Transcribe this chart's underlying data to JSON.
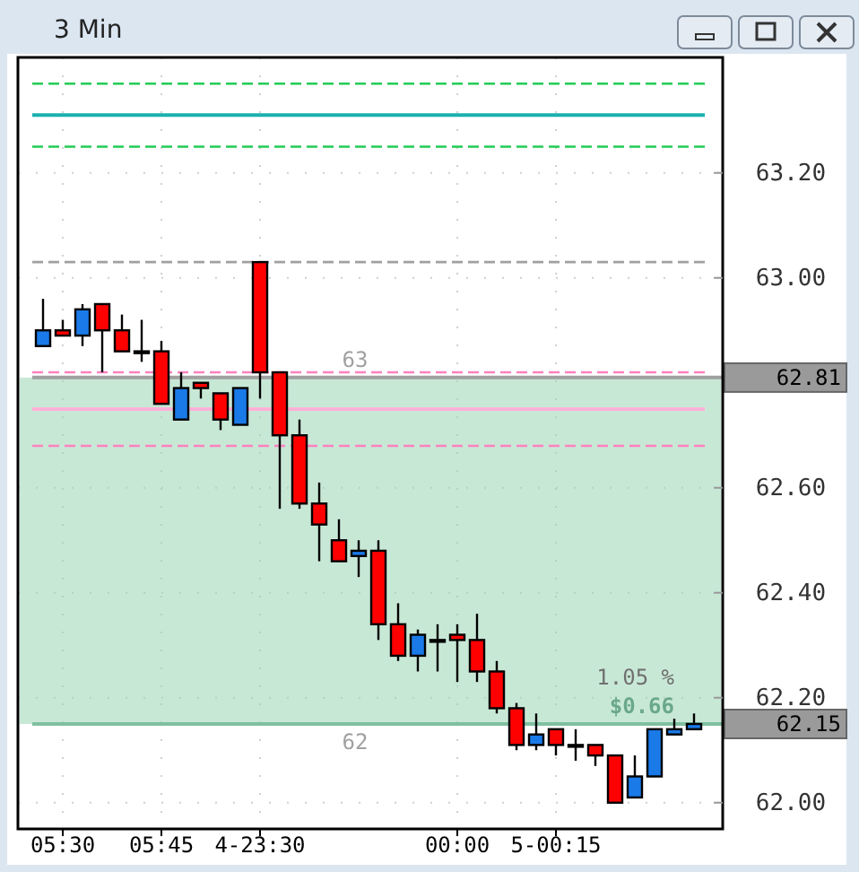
{
  "chart_data": {
    "type": "candlestick",
    "title": "3 Min",
    "categories": [
      null,
      "05:30",
      null,
      null,
      null,
      null,
      "05:45",
      null,
      null,
      null,
      null,
      "4-23:30",
      null,
      null,
      null,
      null,
      null,
      null,
      null,
      null,
      null,
      "00:00",
      null,
      null,
      null,
      null,
      "5-00:15",
      null,
      null,
      null,
      null,
      null,
      null,
      null
    ],
    "ohlc": [
      [
        62.87,
        62.96,
        62.87,
        62.9
      ],
      [
        62.9,
        62.92,
        62.89,
        62.89
      ],
      [
        62.89,
        62.95,
        62.87,
        62.94
      ],
      [
        62.95,
        62.95,
        62.82,
        62.9
      ],
      [
        62.9,
        62.93,
        62.86,
        62.86
      ],
      [
        62.86,
        62.92,
        62.84,
        62.86
      ],
      [
        62.86,
        62.88,
        62.76,
        62.76
      ],
      [
        62.73,
        62.82,
        62.73,
        62.79
      ],
      [
        62.8,
        62.8,
        62.77,
        62.79
      ],
      [
        62.78,
        62.78,
        62.71,
        62.73
      ],
      [
        62.72,
        62.79,
        62.72,
        62.79
      ],
      [
        63.03,
        63.03,
        62.77,
        62.82
      ],
      [
        62.82,
        62.82,
        62.56,
        62.7
      ],
      [
        62.7,
        62.73,
        62.56,
        62.57
      ],
      [
        62.57,
        62.61,
        62.46,
        62.53
      ],
      [
        62.5,
        62.54,
        62.46,
        62.46
      ],
      [
        62.47,
        62.5,
        62.43,
        62.48
      ],
      [
        62.48,
        62.5,
        62.31,
        62.34
      ],
      [
        62.34,
        62.38,
        62.27,
        62.28
      ],
      [
        62.28,
        62.33,
        62.25,
        62.32
      ],
      [
        62.31,
        62.34,
        62.25,
        62.31
      ],
      [
        62.32,
        62.34,
        62.23,
        62.31
      ],
      [
        62.31,
        62.36,
        62.23,
        62.25
      ],
      [
        62.25,
        62.27,
        62.17,
        62.18
      ],
      [
        62.18,
        62.19,
        62.1,
        62.11
      ],
      [
        62.11,
        62.17,
        62.1,
        62.13
      ],
      [
        62.14,
        62.14,
        62.09,
        62.11
      ],
      [
        62.11,
        62.14,
        62.08,
        62.11
      ],
      [
        62.11,
        62.11,
        62.07,
        62.09
      ],
      [
        62.09,
        62.09,
        62,
        62
      ],
      [
        62.01,
        62.09,
        62.01,
        62.05
      ],
      [
        62.05,
        62.14,
        62.05,
        62.14
      ],
      [
        62.13,
        62.16,
        62.13,
        62.14
      ],
      [
        62.14,
        62.17,
        62.14,
        62.15
      ]
    ],
    "colors": [
      "#1a7ae8",
      "#ff0000",
      "#1a7ae8",
      "#ff0000",
      "#ff0000",
      "#ff0000",
      "#ff0000",
      "#1a7ae8",
      "#ff0000",
      "#ff0000",
      "#1a7ae8",
      "#ff0000",
      "#ff0000",
      "#ff0000",
      "#ff0000",
      "#ff0000",
      "#1a7ae8",
      "#ff0000",
      "#ff0000",
      "#1a7ae8",
      "#ff0000",
      "#ff0000",
      "#ff0000",
      "#ff0000",
      "#ff0000",
      "#1a7ae8",
      "#ff0000",
      "#ff0000",
      "#ff0000",
      "#ff0000",
      "#1a7ae8",
      "#1a7ae8",
      "#1a7ae8",
      "#1a7ae8"
    ],
    "ylim": [
      61.95,
      63.42
    ],
    "yticks": [
      {
        "value": 62,
        "label": "62.00"
      },
      {
        "value": 62.2,
        "label": "62.20"
      },
      {
        "value": 62.4,
        "label": "62.40"
      },
      {
        "value": 62.6,
        "label": "62.60"
      },
      {
        "value": 63,
        "label": "63.00"
      },
      {
        "value": 63.2,
        "label": "63.20"
      }
    ],
    "grid": true,
    "ref_lines": [
      {
        "axis": "y",
        "value": 63.37,
        "color": "#22cc55",
        "line_style": "dashed"
      },
      {
        "axis": "y",
        "value": 63.31,
        "color": "#1ab0b0",
        "line_style": "solid"
      },
      {
        "axis": "y",
        "value": 63.25,
        "color": "#22cc55",
        "line_style": "dashed"
      },
      {
        "axis": "y",
        "value": 63.03,
        "color": "#a0a0a0",
        "line_style": "dashed"
      },
      {
        "axis": "y",
        "value": 62.82,
        "color": "#ff80c0",
        "line_style": "dashed"
      },
      {
        "axis": "y",
        "value": 62.75,
        "color": "#ffb0d8",
        "line_style": "solid"
      },
      {
        "axis": "y",
        "value": 62.68,
        "color": "#ff80c0",
        "line_style": "dashed"
      },
      {
        "axis": "y",
        "value": 62.81,
        "label": "62.81",
        "color": "#a0a0a0",
        "line_style": "solid"
      },
      {
        "axis": "y",
        "value": 62.15,
        "label": "62.15",
        "color": "#80c0a0",
        "line_style": "solid"
      }
    ],
    "bands": [
      {
        "axis": "y",
        "from": 62.15,
        "to": 62.81,
        "color": "#9ad6b4"
      }
    ],
    "annotations": [
      "63",
      "62",
      "$0.66",
      "1.05 %"
    ]
  }
}
